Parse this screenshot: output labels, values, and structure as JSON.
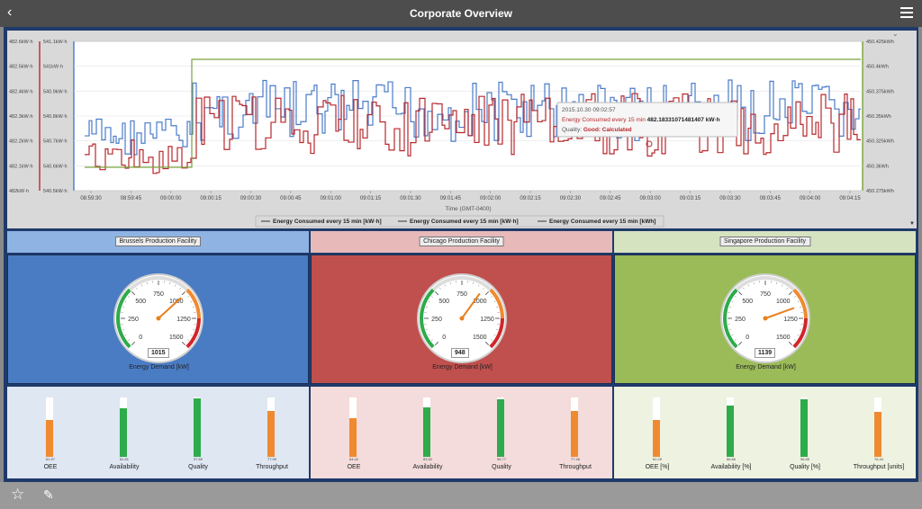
{
  "header": {
    "title": "Corporate Overview"
  },
  "chart_data": {
    "type": "line",
    "left_axis_a_ticks": [
      "482.6kW·h",
      "482.5kW·h",
      "482.4kW·h",
      "482.3kW·h",
      "482.2kW·h",
      "482.1kW·h",
      "482kW·h"
    ],
    "left_axis_b_ticks": [
      "541.1kW·h",
      "541kW·h",
      "540.9kW·h",
      "540.8kW·h",
      "540.7kW·h",
      "540.6kW·h",
      "540.5kW·h"
    ],
    "right_axis_ticks": [
      "450.425kWh",
      "450.4kWh",
      "450.375kWh",
      "450.35kWh",
      "450.325kWh",
      "450.3kWh",
      "450.275kWh"
    ],
    "x_ticks": [
      "08:59:30",
      "08:59:45",
      "09:00:00",
      "09:00:15",
      "09:00:30",
      "09:00:45",
      "09:01:00",
      "09:01:15",
      "09:01:30",
      "09:01:45",
      "09:02:00",
      "09:02:15",
      "09:02:30",
      "09:02:45",
      "09:03:00",
      "09:03:15",
      "09:03:30",
      "09:03:45",
      "09:04:00",
      "09:04:15"
    ],
    "xlabel": "Time (GMT-0400)",
    "series": [
      {
        "name": "Energy Consumed every 15 min [kW·h]",
        "color": "#4a7bc8"
      },
      {
        "name": "Energy Consumed every 15 min [kW·h]",
        "color": "#b8282d"
      },
      {
        "name": "Energy Consumed every 15 min [kWh]",
        "color": "#7aa33a"
      }
    ],
    "tooltip": {
      "time": "2015.10.30 09:02:57",
      "label": "Energy Consumed every 15 min",
      "value": "482.18331071481407 kW·h",
      "quality_label": "Quality:",
      "quality_value": "Good: Calculated"
    }
  },
  "facilities": [
    {
      "name": "Brussels Production Facility",
      "head_color": "#8fb4e3",
      "gauge_bg": "#4a7cc4",
      "bars_bg": "#dfe7f2",
      "gauge_value": 1015,
      "gauge_readout": "1015",
      "gauge_label": "Energy Demand [kW]",
      "ticks": [
        "0",
        "250",
        "500",
        "750",
        "1000",
        "1250",
        "1500"
      ],
      "bars": [
        {
          "name": "OEE",
          "value": 61.97,
          "label": "61.97",
          "color": "#f08a30"
        },
        {
          "name": "Availability",
          "value": 81.81,
          "label": "81.81",
          "color": "#2eab4a"
        },
        {
          "name": "Quality",
          "value": 97.89,
          "label": "97.89",
          "color": "#2eab4a"
        },
        {
          "name": "Throughput",
          "value": 77.99,
          "label": "77.99",
          "color": "#f08a30"
        }
      ]
    },
    {
      "name": "Chicago Production Facility",
      "head_color": "#e8b9b9",
      "gauge_bg": "#c0504d",
      "bars_bg": "#f4dcdc",
      "gauge_value": 948,
      "gauge_readout": "948",
      "gauge_label": "Energy Demand [kW]",
      "ticks": [
        "0",
        "250",
        "500",
        "750",
        "1000",
        "1250",
        "1500"
      ],
      "bars": [
        {
          "name": "OEE",
          "value": 64.42,
          "label": "64.42",
          "color": "#f08a30"
        },
        {
          "name": "Availability",
          "value": 83.52,
          "label": "83.52",
          "color": "#2eab4a"
        },
        {
          "name": "Quality",
          "value": 96.77,
          "label": "96.77",
          "color": "#2eab4a"
        },
        {
          "name": "Throughput",
          "value": 77.46,
          "label": "77.46",
          "color": "#f08a30"
        }
      ]
    },
    {
      "name": "Singapore Production Facility",
      "head_color": "#d6e3c1",
      "gauge_bg": "#9bbb59",
      "bars_bg": "#eef2e1",
      "gauge_value": 1139,
      "gauge_readout": "1139",
      "gauge_label": "Energy Demand [kW]",
      "ticks": [
        "0",
        "250",
        "500",
        "750",
        "1000",
        "1250",
        "1500"
      ],
      "bars": [
        {
          "name": "OEE [%]",
          "value": 62.25,
          "label": "62.25",
          "color": "#f08a30"
        },
        {
          "name": "Availability [%]",
          "value": 86.86,
          "label": "86.86",
          "color": "#2eab4a"
        },
        {
          "name": "Quality [%]",
          "value": 96.85,
          "label": "96.85",
          "color": "#2eab4a"
        },
        {
          "name": "Throughput [units]",
          "value": 76.44,
          "label": "76.44",
          "color": "#f08a30"
        }
      ]
    }
  ]
}
